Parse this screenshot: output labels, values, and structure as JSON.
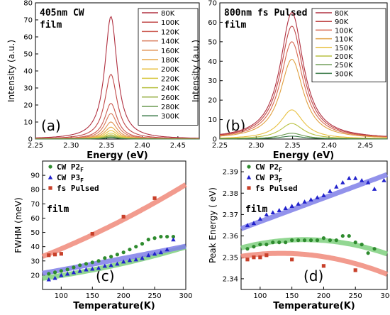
{
  "chart_data": [
    {
      "panel": "a",
      "type": "line",
      "annotation": "405nm CW",
      "annotation2": "film",
      "panel_label": "(a)",
      "xlabel": "Energy (eV)",
      "ylabel": "Intensity (a.u.)",
      "xlim": [
        2.25,
        2.48
      ],
      "ylim": [
        0,
        80
      ],
      "xticks": [
        2.25,
        2.3,
        2.35,
        2.4,
        2.45
      ],
      "xtick_labels": [
        "2.25",
        "2.30",
        "2.35",
        "2.40",
        "2.45"
      ],
      "yticks": [
        0,
        10,
        20,
        30,
        40,
        50,
        60,
        70,
        80
      ],
      "peak_center": 2.356,
      "peak_width": 0.012,
      "series": [
        {
          "name": "80K",
          "peak": 72,
          "color": "#b03040"
        },
        {
          "name": "100K",
          "peak": 38,
          "color": "#c04848"
        },
        {
          "name": "120K",
          "peak": 21,
          "color": "#cc5a50"
        },
        {
          "name": "140K",
          "peak": 15,
          "color": "#d87858"
        },
        {
          "name": "160K",
          "peak": 10,
          "color": "#e09050"
        },
        {
          "name": "180K",
          "peak": 7,
          "color": "#e8a848"
        },
        {
          "name": "200K",
          "peak": 5,
          "color": "#e8c040"
        },
        {
          "name": "220K",
          "peak": 3.5,
          "color": "#d8c840"
        },
        {
          "name": "240K",
          "peak": 2.5,
          "color": "#b8c040"
        },
        {
          "name": "260K",
          "peak": 1.8,
          "color": "#98b048"
        },
        {
          "name": "280K",
          "peak": 1.2,
          "color": "#6a9a50"
        },
        {
          "name": "300K",
          "peak": 0.8,
          "color": "#3a7a48"
        }
      ]
    },
    {
      "panel": "b",
      "type": "line",
      "annotation": "800nm fs Pulsed",
      "annotation2": "film",
      "panel_label": "(b)",
      "xlabel": "Energy (eV)",
      "ylabel": "Intensity (a.u.)",
      "xlim": [
        2.25,
        2.48
      ],
      "ylim": [
        0,
        70
      ],
      "xticks": [
        2.25,
        2.3,
        2.35,
        2.4,
        2.45
      ],
      "xtick_labels": [
        "2.25",
        "2.30",
        "2.35",
        "2.40",
        "2.45"
      ],
      "yticks": [
        0,
        10,
        20,
        30,
        40,
        50,
        60,
        70
      ],
      "peak_center": 2.349,
      "peak_width": 0.022,
      "series": [
        {
          "name": "80K",
          "peak": 65,
          "color": "#b03040"
        },
        {
          "name": "90K",
          "peak": 58,
          "color": "#c04848"
        },
        {
          "name": "100K",
          "peak": 50,
          "color": "#d86850"
        },
        {
          "name": "110K",
          "peak": 41,
          "color": "#e0a040"
        },
        {
          "name": "150K",
          "peak": 15,
          "color": "#e8c040"
        },
        {
          "name": "200K",
          "peak": 8,
          "color": "#b8c040"
        },
        {
          "name": "250K",
          "peak": 3,
          "color": "#6a9a50"
        },
        {
          "name": "300K",
          "peak": 1.5,
          "color": "#3a7a48"
        }
      ]
    },
    {
      "panel": "c",
      "type": "scatter",
      "annotation": "film",
      "panel_label": "(c)",
      "xlabel": "Temperature(K)",
      "ylabel": "FWHM (meV)",
      "xlim": [
        70,
        300
      ],
      "ylim": [
        10,
        100
      ],
      "xticks": [
        100,
        150,
        200,
        250,
        300
      ],
      "yticks": [
        20,
        30,
        40,
        50,
        60,
        70,
        80,
        90
      ],
      "legend": [
        {
          "name_main": "CW P2",
          "name_sub": "F",
          "marker": "circle",
          "color": "#2e8b2e"
        },
        {
          "name_main": "CW P3",
          "name_sub": "F",
          "marker": "triangle",
          "color": "#2222cc"
        },
        {
          "name_main": "fs Pulsed",
          "name_sub": "",
          "marker": "square",
          "color": "#c8402a"
        }
      ],
      "series": [
        {
          "name": "CW P2F",
          "marker": "circle",
          "color": "#2e8b2e",
          "x": [
            80,
            90,
            100,
            110,
            120,
            130,
            140,
            150,
            160,
            170,
            180,
            190,
            200,
            210,
            220,
            230,
            240,
            250,
            260,
            270,
            280
          ],
          "y": [
            21,
            22,
            23,
            24,
            25.5,
            27,
            28,
            29,
            30,
            32,
            33,
            34.5,
            36,
            38,
            40,
            42,
            45,
            46,
            47,
            47,
            47
          ]
        },
        {
          "name": "CW P3F",
          "marker": "triangle",
          "color": "#2222cc",
          "x": [
            80,
            90,
            100,
            110,
            120,
            130,
            140,
            150,
            160,
            170,
            180,
            190,
            200,
            210,
            220,
            230,
            240,
            250,
            260,
            270,
            280
          ],
          "y": [
            17,
            18,
            20,
            21,
            22,
            23,
            24,
            24.5,
            25,
            26.5,
            27,
            28,
            29.5,
            30.5,
            31,
            32,
            34,
            35,
            36,
            38,
            45
          ]
        },
        {
          "name": "fs Pulsed",
          "marker": "square",
          "color": "#c8402a",
          "x": [
            80,
            90,
            100,
            150,
            200,
            250
          ],
          "y": [
            34,
            34.5,
            35,
            49,
            61,
            74
          ]
        }
      ],
      "fits": [
        {
          "color": "#7fd07f",
          "x": [
            70,
            300
          ],
          "poly": [
            0.00015,
            0.04,
            14.3
          ]
        },
        {
          "color": "#7f7fe8",
          "x": [
            70,
            300
          ],
          "poly": [
            2e-05,
            0.075,
            16.0
          ]
        },
        {
          "color": "#f08a7a",
          "x": [
            70,
            300
          ],
          "poly": [
            0.0002,
            0.145,
            22.0
          ]
        }
      ]
    },
    {
      "panel": "d",
      "type": "scatter",
      "annotation": "film",
      "panel_label": "(d)",
      "xlabel": "Temperature(K)",
      "ylabel": "Peak Energy ( eV)",
      "xlim": [
        70,
        300
      ],
      "ylim": [
        2.335,
        2.395
      ],
      "xticks": [
        100,
        150,
        200,
        250,
        300
      ],
      "yticks": [
        2.34,
        2.35,
        2.36,
        2.37,
        2.38,
        2.39
      ],
      "legend": [
        {
          "name_main": "CW P2",
          "name_sub": "F",
          "marker": "circle",
          "color": "#2e8b2e"
        },
        {
          "name_main": "CW P3",
          "name_sub": "F",
          "marker": "triangle",
          "color": "#2222cc"
        },
        {
          "name_main": "fs Pulsed",
          "name_sub": "",
          "marker": "square",
          "color": "#c8402a"
        }
      ],
      "series": [
        {
          "name": "CW P2F",
          "marker": "circle",
          "color": "#2e8b2e",
          "x": [
            80,
            90,
            100,
            110,
            120,
            130,
            140,
            150,
            160,
            170,
            180,
            190,
            200,
            210,
            220,
            230,
            240,
            250,
            260,
            270,
            280
          ],
          "y": [
            2.354,
            2.355,
            2.356,
            2.356,
            2.357,
            2.357,
            2.357,
            2.358,
            2.358,
            2.358,
            2.358,
            2.358,
            2.359,
            2.358,
            2.358,
            2.36,
            2.36,
            2.357,
            2.356,
            2.352,
            2.354
          ]
        },
        {
          "name": "CW P3F",
          "marker": "triangle",
          "color": "#2222cc",
          "x": [
            80,
            90,
            100,
            110,
            120,
            130,
            140,
            150,
            160,
            170,
            180,
            190,
            200,
            210,
            220,
            230,
            240,
            250,
            260,
            270,
            280,
            295
          ],
          "y": [
            2.365,
            2.366,
            2.368,
            2.37,
            2.371,
            2.372,
            2.373,
            2.374,
            2.375,
            2.376,
            2.377,
            2.378,
            2.379,
            2.381,
            2.383,
            2.385,
            2.387,
            2.387,
            2.386,
            2.385,
            2.382,
            2.386
          ]
        },
        {
          "name": "fs Pulsed",
          "marker": "square",
          "color": "#c8402a",
          "x": [
            80,
            90,
            100,
            110,
            150,
            200,
            250
          ],
          "y": [
            2.349,
            2.35,
            2.35,
            2.351,
            2.349,
            2.346,
            2.344
          ]
        }
      ],
      "fits": [
        {
          "color": "#7fd07f",
          "x": [
            70,
            300
          ],
          "poly": [
            -3.9e-07,
            0.000132,
            2.3471
          ]
        },
        {
          "color": "#7f7fe8",
          "x": [
            70,
            300
          ],
          "poly": [
            0.0,
            0.00011,
            2.3557
          ]
        },
        {
          "color": "#f08a7a",
          "x": [
            70,
            300
          ],
          "poly": [
            -3.5e-07,
            9.3e-05,
            2.3457
          ]
        }
      ]
    }
  ]
}
